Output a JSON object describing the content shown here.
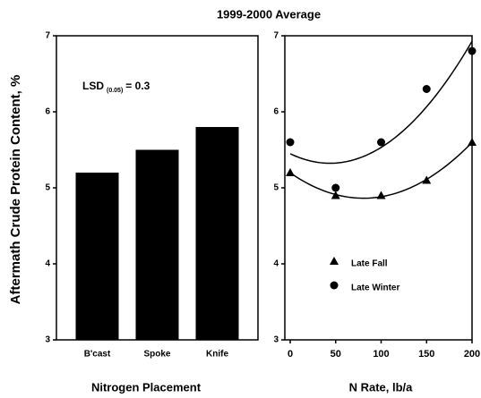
{
  "title": "1999-2000 Average",
  "y_label": "Aftermath Crude Protein Content, %",
  "chart_data": [
    {
      "type": "bar",
      "categories": [
        "B'cast",
        "Spoke",
        "Knife"
      ],
      "values": [
        5.2,
        5.5,
        5.8
      ],
      "color": "#000000",
      "ylim": [
        3,
        7
      ],
      "yticks": [
        3,
        4,
        5,
        6,
        7
      ],
      "x_label": "Nitrogen Placement",
      "annotation": {
        "text": "LSD",
        "subscript": "(0.05)",
        "suffix": "= 0.3"
      }
    },
    {
      "type": "scatter",
      "x": [
        0,
        50,
        100,
        150,
        200
      ],
      "xlim": [
        0,
        200
      ],
      "xticks": [
        0,
        50,
        100,
        150,
        200
      ],
      "ylim": [
        3,
        7
      ],
      "yticks": [
        3,
        4,
        5,
        6,
        7
      ],
      "x_label": "N Rate, lb/a",
      "trendline": "quadratic",
      "series": [
        {
          "name": "Late Fall",
          "color": "#000000",
          "marker": "triangle",
          "values": [
            5.2,
            4.9,
            4.9,
            5.1,
            5.6
          ]
        },
        {
          "name": "Late Winter",
          "color": "#000000",
          "marker": "circle",
          "values": [
            5.6,
            5.0,
            5.6,
            6.3,
            6.8
          ]
        }
      ]
    }
  ]
}
